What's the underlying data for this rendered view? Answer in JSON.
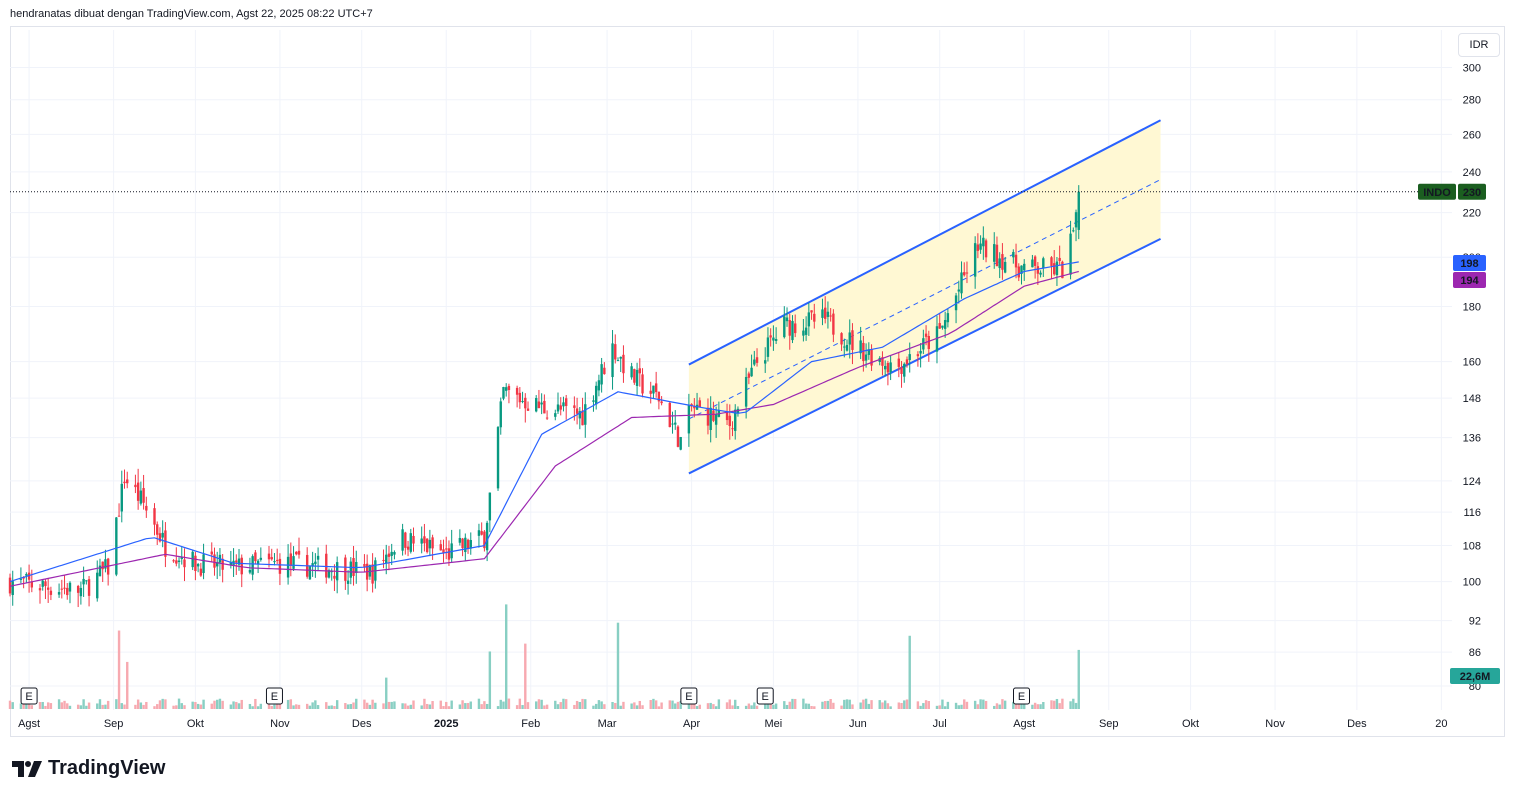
{
  "header": {
    "caption": "hendranatas dibuat dengan TradingView.com, Agst 22, 2025 08:22 UTC+7"
  },
  "brand": {
    "name": "TradingView",
    "icon": "tradingview-logo-icon"
  },
  "currency_label": "IDR",
  "colors": {
    "up": "#089981",
    "down": "#f23645",
    "ema_fast": "#2962ff",
    "ema_slow": "#9c27b0",
    "channel": "#2962ff",
    "channel_fill": "#fff8d3",
    "grid": "#f0f3fa",
    "vol_up": "#88cfc3",
    "vol_down": "#f7a9b0",
    "ticker_bg": "#1b5e20"
  },
  "chart_data": {
    "type": "candlestick",
    "symbol": "INDO",
    "y_scale": "log",
    "y_ticks": [
      80,
      86,
      92,
      100,
      108,
      116,
      124,
      136,
      148,
      160,
      180,
      200,
      220,
      240,
      260,
      280,
      300
    ],
    "x_ticks": [
      {
        "label": "Agst",
        "date": "2024-08-01"
      },
      {
        "label": "Sep",
        "date": "2024-09-01"
      },
      {
        "label": "Okt",
        "date": "2024-10-01"
      },
      {
        "label": "Nov",
        "date": "2024-11-01"
      },
      {
        "label": "Des",
        "date": "2024-12-01"
      },
      {
        "label": "2025",
        "date": "2025-01-01"
      },
      {
        "label": "Feb",
        "date": "2025-02-01"
      },
      {
        "label": "Mar",
        "date": "2025-03-01"
      },
      {
        "label": "Apr",
        "date": "2025-04-01"
      },
      {
        "label": "Mei",
        "date": "2025-05-01"
      },
      {
        "label": "Jun",
        "date": "2025-06-01"
      },
      {
        "label": "Jul",
        "date": "2025-07-01"
      },
      {
        "label": "Agst",
        "date": "2025-08-01"
      },
      {
        "label": "Sep",
        "date": "2025-09-01"
      },
      {
        "label": "Okt",
        "date": "2025-10-01"
      },
      {
        "label": "Nov",
        "date": "2025-11-01"
      },
      {
        "label": "Des",
        "date": "2025-12-01"
      },
      {
        "label": "20",
        "date": "2026-01-01"
      }
    ],
    "bold_x_labels": [
      "2025"
    ],
    "price_path": [
      [
        "2024-07-25",
        100
      ],
      [
        "2024-08-20",
        98
      ],
      [
        "2024-08-30",
        103
      ],
      [
        "2024-09-05",
        125
      ],
      [
        "2024-09-12",
        118
      ],
      [
        "2024-09-20",
        108
      ],
      [
        "2024-10-01",
        104
      ],
      [
        "2024-10-15",
        103
      ],
      [
        "2024-11-01",
        104
      ],
      [
        "2024-11-20",
        103
      ],
      [
        "2024-12-05",
        102
      ],
      [
        "2024-12-15",
        110
      ],
      [
        "2025-01-01",
        106
      ],
      [
        "2025-01-15",
        110
      ],
      [
        "2025-01-22",
        150
      ],
      [
        "2025-02-05",
        145
      ],
      [
        "2025-02-20",
        143
      ],
      [
        "2025-03-03",
        165
      ],
      [
        "2025-03-10",
        155
      ],
      [
        "2025-03-20",
        148
      ],
      [
        "2025-03-28",
        135
      ],
      [
        "2025-04-01",
        145
      ],
      [
        "2025-04-15",
        140
      ],
      [
        "2025-04-25",
        160
      ],
      [
        "2025-05-05",
        173
      ],
      [
        "2025-05-20",
        175
      ],
      [
        "2025-06-01",
        165
      ],
      [
        "2025-06-15",
        158
      ],
      [
        "2025-07-01",
        170
      ],
      [
        "2025-07-15",
        205
      ],
      [
        "2025-08-01",
        195
      ],
      [
        "2025-08-15",
        195
      ],
      [
        "2025-08-20",
        215
      ],
      [
        "2025-08-21",
        230
      ]
    ],
    "ema_fast_path": [
      [
        "2024-07-25",
        100
      ],
      [
        "2024-09-15",
        110
      ],
      [
        "2024-10-15",
        104
      ],
      [
        "2024-12-01",
        103
      ],
      [
        "2025-01-15",
        108
      ],
      [
        "2025-02-05",
        137
      ],
      [
        "2025-03-05",
        150
      ],
      [
        "2025-04-05",
        145
      ],
      [
        "2025-04-20",
        143
      ],
      [
        "2025-05-15",
        160
      ],
      [
        "2025-06-10",
        165
      ],
      [
        "2025-07-10",
        183
      ],
      [
        "2025-08-01",
        194
      ],
      [
        "2025-08-21",
        198
      ]
    ],
    "ema_slow_path": [
      [
        "2024-07-25",
        99
      ],
      [
        "2024-09-20",
        106
      ],
      [
        "2024-10-20",
        103
      ],
      [
        "2024-12-01",
        102
      ],
      [
        "2025-01-15",
        105
      ],
      [
        "2025-02-10",
        128
      ],
      [
        "2025-03-10",
        142
      ],
      [
        "2025-04-10",
        143
      ],
      [
        "2025-05-01",
        146
      ],
      [
        "2025-06-01",
        158
      ],
      [
        "2025-07-05",
        170
      ],
      [
        "2025-08-01",
        188
      ],
      [
        "2025-08-21",
        194
      ]
    ],
    "volume_spikes": [
      {
        "date": "2024-09-03",
        "value": 30
      },
      {
        "date": "2024-09-06",
        "value": 18
      },
      {
        "date": "2024-12-10",
        "value": 12
      },
      {
        "date": "2025-01-17",
        "value": 22
      },
      {
        "date": "2025-01-23",
        "value": 40
      },
      {
        "date": "2025-01-25",
        "value": 60
      },
      {
        "date": "2025-01-30",
        "value": 25
      },
      {
        "date": "2025-03-05",
        "value": 33
      },
      {
        "date": "2025-06-20",
        "value": 28
      },
      {
        "date": "2025-07-12",
        "value": 22
      },
      {
        "date": "2025-08-21",
        "value": 22.6
      }
    ],
    "earnings_markers": [
      "2024-08-01",
      "2024-10-30",
      "2025-03-31",
      "2025-04-28",
      "2025-07-31"
    ],
    "earnings_label": "E",
    "channel": {
      "start": {
        "date": "2025-03-31",
        "lower": 126,
        "upper": 159
      },
      "end": {
        "date": "2025-09-20",
        "lower": 208,
        "upper": 268
      }
    },
    "last_price_labels": [
      {
        "label": "INDO",
        "value": "230"
      },
      {
        "label": "",
        "value": "198"
      },
      {
        "label": "",
        "value": "194"
      },
      {
        "label": "",
        "value": "22,6M"
      }
    ],
    "last_price": 230
  }
}
